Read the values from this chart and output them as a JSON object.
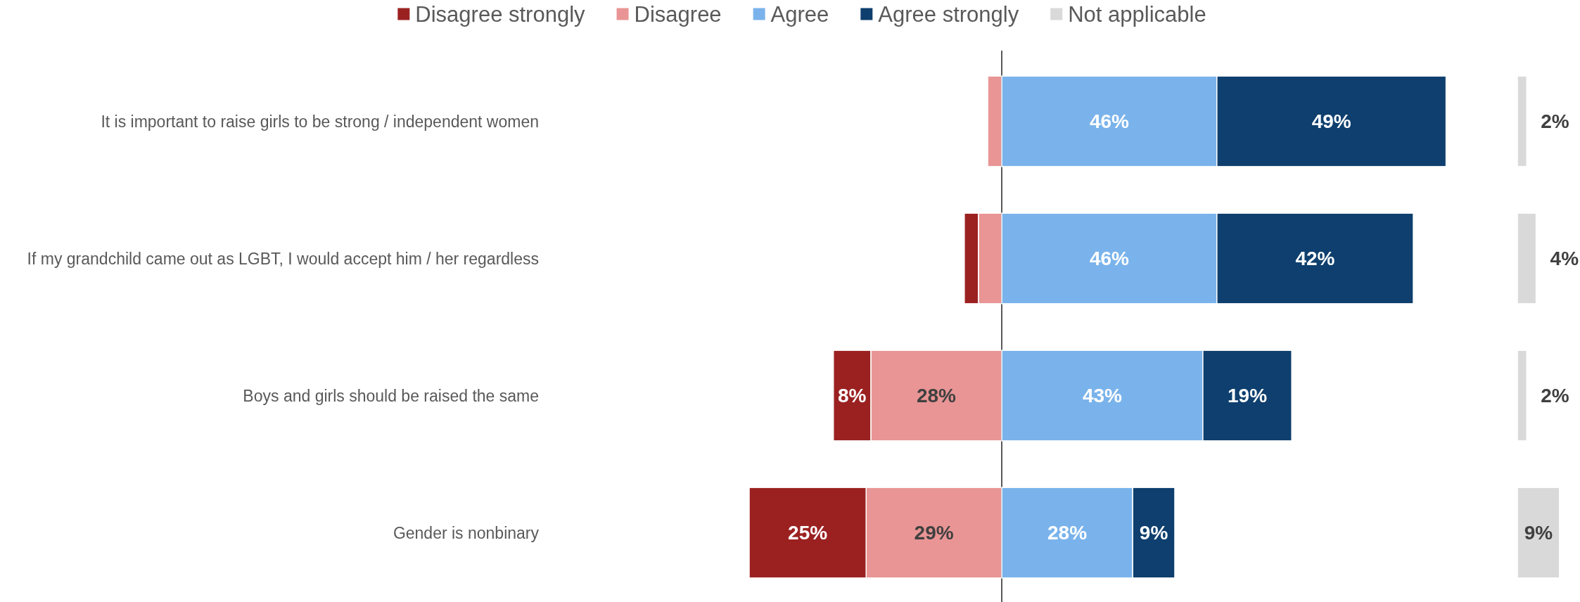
{
  "chart_data": [
    {
      "type": "bar",
      "orientation": "horizontal",
      "stacked": true,
      "categories": [
        "It is important to raise girls to be strong / independent women",
        "If my grandchild came out as LGBT, I would accept him / her regardless",
        "Boys and girls should be raised the same",
        "Gender is nonbinary"
      ],
      "xlim": [
        54,
        0
      ],
      "series": [
        {
          "name": "Disagree",
          "color": "#e99595",
          "values": [
            3,
            5,
            28,
            29
          ],
          "value_labels": [
            null,
            null,
            "28%",
            "29%"
          ]
        },
        {
          "name": "Disagree strongly",
          "color": "#9b2121",
          "values": [
            null,
            3,
            8,
            25
          ],
          "value_labels": [
            null,
            null,
            "8%",
            "25%"
          ]
        }
      ],
      "legend": "top"
    },
    {
      "type": "bar",
      "orientation": "horizontal",
      "stacked": true,
      "categories": [
        null,
        null,
        null,
        null
      ],
      "series": [
        {
          "name": "Agree",
          "color": "#7ab3eb",
          "values": [
            46,
            46,
            43,
            28
          ],
          "value_labels": [
            "46%",
            "46%",
            "43%",
            "28%"
          ]
        },
        {
          "name": "Agree strongly",
          "color": "#0e3f6e",
          "values": [
            49,
            42,
            19,
            9
          ],
          "value_labels": [
            "49%",
            "42%",
            "19%",
            "9%"
          ]
        }
      ],
      "legend": "top"
    },
    {
      "type": "bar",
      "orientation": "horizontal",
      "categories": [
        null,
        null,
        null,
        null
      ],
      "series": [
        {
          "name": "Not applicable",
          "color": "#d9d9d9",
          "values": [
            2,
            4,
            2,
            9
          ],
          "value_labels": [
            "2%",
            "4%",
            "2%",
            "9%"
          ]
        }
      ],
      "legend": "top"
    }
  ]
}
